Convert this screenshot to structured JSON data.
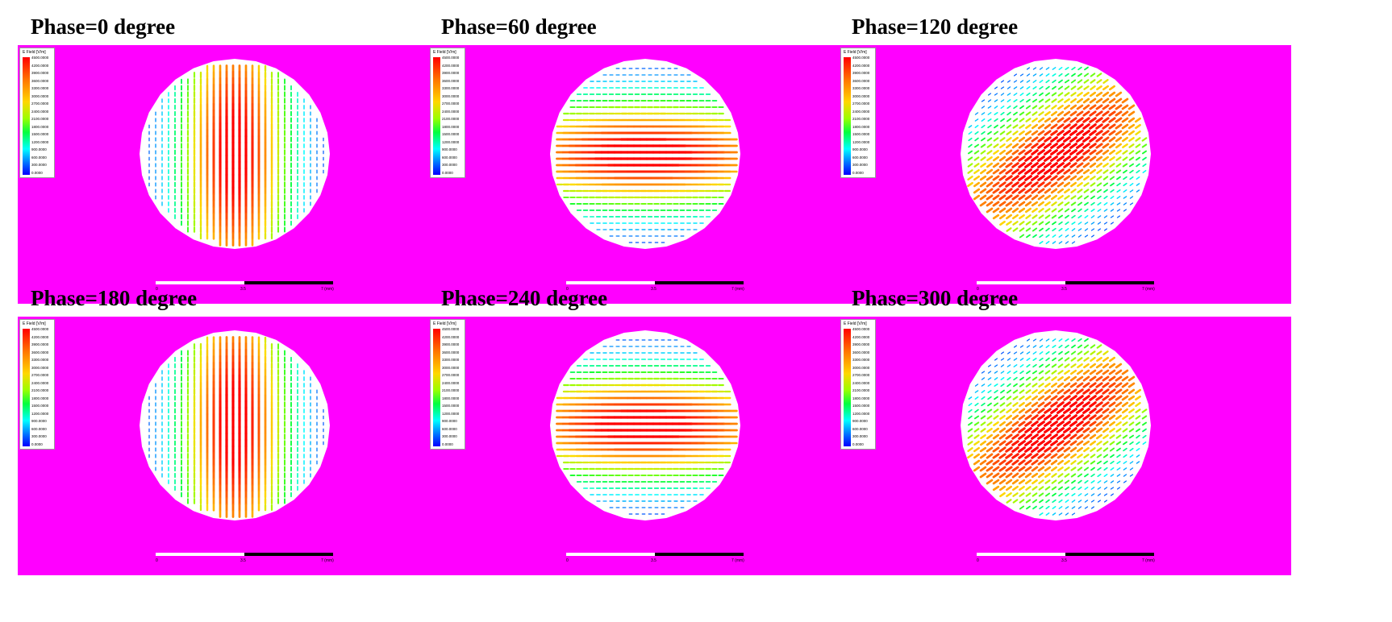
{
  "panels": [
    {
      "title": "Phase=0 degree",
      "angle": 90
    },
    {
      "title": "Phase=60 degree",
      "angle": 0
    },
    {
      "title": "Phase=120 degree",
      "angle": 35
    },
    {
      "title": "Phase=180 degree",
      "angle": 90
    },
    {
      "title": "Phase=240 degree",
      "angle": 0
    },
    {
      "title": "Phase=300 degree",
      "angle": 35
    }
  ],
  "legend": {
    "title": "E Field [V/m]",
    "ticks": [
      "4500.0000",
      "4200.0000",
      "3900.0000",
      "3600.0000",
      "3300.0000",
      "3000.0000",
      "2700.0000",
      "2400.0000",
      "2100.0000",
      "1800.0000",
      "1500.0000",
      "1200.0000",
      "900.0000",
      "600.0000",
      "300.0000",
      "0.0000"
    ]
  },
  "scale": {
    "left": "0",
    "mid": "3.5",
    "right": "7 (mm)"
  },
  "colors": {
    "background": "#ff00ff",
    "disk": "#ffffff",
    "field_max": "#ff0000",
    "field_min": "#0000ff"
  }
}
